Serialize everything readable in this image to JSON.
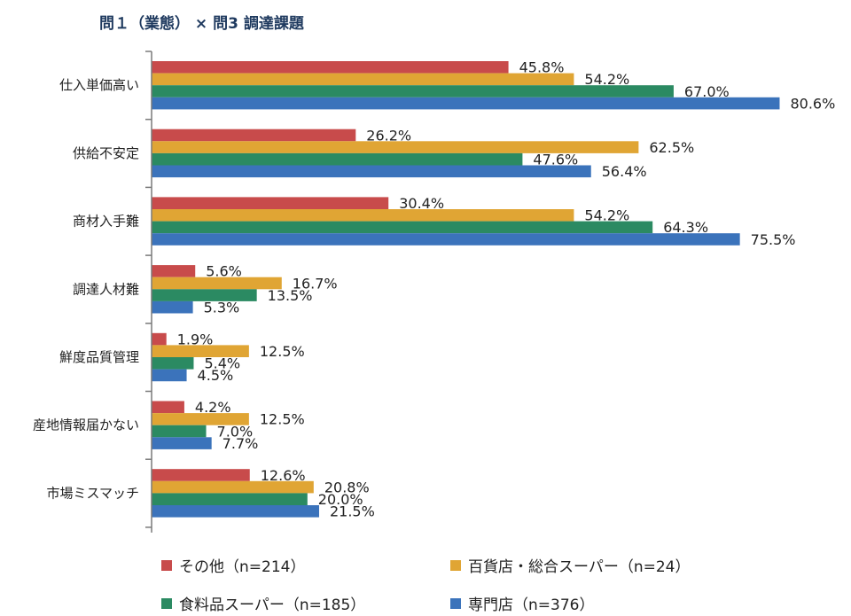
{
  "title": "問１（業態） × 問3 調達課題",
  "colors": {
    "series": [
      "#c84b4b",
      "#e0a534",
      "#2b8a62",
      "#3b73bb"
    ],
    "axis": "#7a7a7a",
    "text": "#222222",
    "title": "#1f3a5f"
  },
  "chart_data": {
    "type": "bar",
    "orientation": "horizontal",
    "title": "問１（業態） × 問3 調達課題",
    "xlabel": "",
    "ylabel": "",
    "xlim": [
      0,
      100
    ],
    "grid": false,
    "legend_position": "bottom",
    "categories": [
      "仕入単価高い",
      "供給不安定",
      "商材入手難",
      "調達人材難",
      "鮮度品質管理",
      "産地情報届かない",
      "市場ミスマッチ"
    ],
    "series": [
      {
        "name": "その他（n=214）",
        "values": [
          45.8,
          26.2,
          30.4,
          5.6,
          1.9,
          4.2,
          12.6
        ],
        "labels": [
          "45.8%",
          "26.2%",
          "30.4%",
          "5.6%",
          "1.9%",
          "4.2%",
          "12.6%"
        ]
      },
      {
        "name": "百貨店・総合スーパー（n=24）",
        "values": [
          54.2,
          62.5,
          54.2,
          16.7,
          12.5,
          12.5,
          20.8
        ],
        "labels": [
          "54.2%",
          "62.5%",
          "54.2%",
          "16.7%",
          "12.5%",
          "12.5%",
          "20.8%"
        ]
      },
      {
        "name": "食料品スーパー（n=185）",
        "values": [
          67.0,
          47.6,
          64.3,
          13.5,
          5.4,
          7.0,
          20.0
        ],
        "labels": [
          "67.0%",
          "47.6%",
          "64.3%",
          "13.5%",
          "5.4%",
          "7.0%",
          "20.0%"
        ]
      },
      {
        "name": "専門店（n=376）",
        "values": [
          80.6,
          56.4,
          75.5,
          5.3,
          4.5,
          7.7,
          21.5
        ],
        "labels": [
          "80.6%",
          "56.4%",
          "75.5%",
          "5.3%",
          "4.5%",
          "7.7%",
          "21.5%"
        ]
      }
    ]
  },
  "legend": [
    {
      "label": "その他（n=214）"
    },
    {
      "label": "百貨店・総合スーパー（n=24）"
    },
    {
      "label": "食料品スーパー（n=185）"
    },
    {
      "label": "専門店（n=376）"
    }
  ]
}
